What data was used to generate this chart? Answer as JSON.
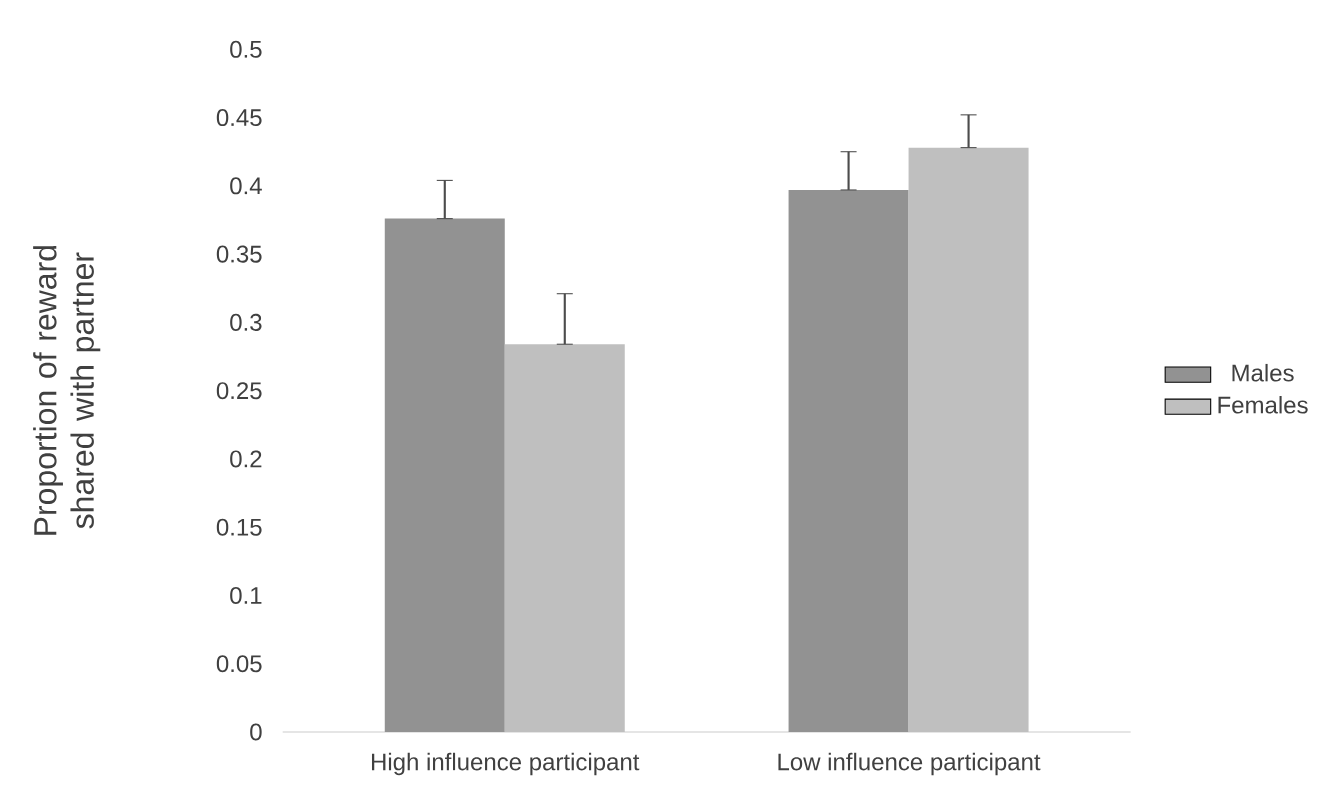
{
  "chart_data": {
    "type": "bar",
    "ylabel": "Proportion  of reward shared with partner",
    "categories": [
      "High influence participant",
      "Low influence participant"
    ],
    "series": [
      {
        "name": "Males",
        "color": "#929292",
        "values": [
          0.376,
          0.397
        ],
        "errors": [
          [
            0.376,
            0.404
          ],
          [
            0.397,
            0.425
          ]
        ]
      },
      {
        "name": "Females",
        "color": "#bfbfbf",
        "values": [
          0.284,
          0.428
        ],
        "errors": [
          [
            0.284,
            0.321
          ],
          [
            0.428,
            0.452
          ]
        ]
      }
    ],
    "ylim": [
      0,
      0.5
    ],
    "yticks": [
      0,
      0.05,
      0.1,
      0.15,
      0.2,
      0.25,
      0.3,
      0.35,
      0.4,
      0.45,
      0.5
    ],
    "grid": false,
    "legend": "right"
  }
}
